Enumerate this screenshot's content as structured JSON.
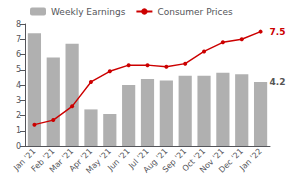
{
  "chart_data": {
    "type": "bar",
    "categories": [
      "Jan '21",
      "Feb '21",
      "Mar '21",
      "Apr '21",
      "May '21",
      "Jun '21",
      "Jul '21",
      "Aug '21",
      "Sep '21",
      "Oct '21",
      "Nov '21",
      "Dec '21",
      "Jan '22"
    ],
    "series": [
      {
        "name": "Weekly Earnings",
        "type": "bar",
        "color": "#b0b0b0",
        "values": [
          7.4,
          5.8,
          6.7,
          2.4,
          2.1,
          4.0,
          4.4,
          4.3,
          4.6,
          4.6,
          4.8,
          4.7,
          4.2
        ]
      },
      {
        "name": "Consumer Prices",
        "type": "line",
        "color": "#cc0000",
        "marker": "circle",
        "values": [
          1.4,
          1.7,
          2.6,
          4.2,
          4.9,
          5.3,
          5.3,
          5.2,
          5.4,
          6.2,
          6.8,
          7.0,
          7.5
        ]
      }
    ],
    "annotations": [
      {
        "text": "7.5",
        "x": "Jan '22",
        "y": 7.5,
        "color": "#cc0000",
        "series": "Consumer Prices"
      },
      {
        "text": "4.2",
        "x": "Jan '22",
        "y": 4.2,
        "color": "#555555",
        "series": "Weekly Earnings"
      }
    ],
    "ylim": [
      0,
      8
    ],
    "yticks": [
      0,
      1,
      2,
      3,
      4,
      5,
      6,
      7,
      8
    ],
    "grid": false,
    "legend": "upper left"
  }
}
